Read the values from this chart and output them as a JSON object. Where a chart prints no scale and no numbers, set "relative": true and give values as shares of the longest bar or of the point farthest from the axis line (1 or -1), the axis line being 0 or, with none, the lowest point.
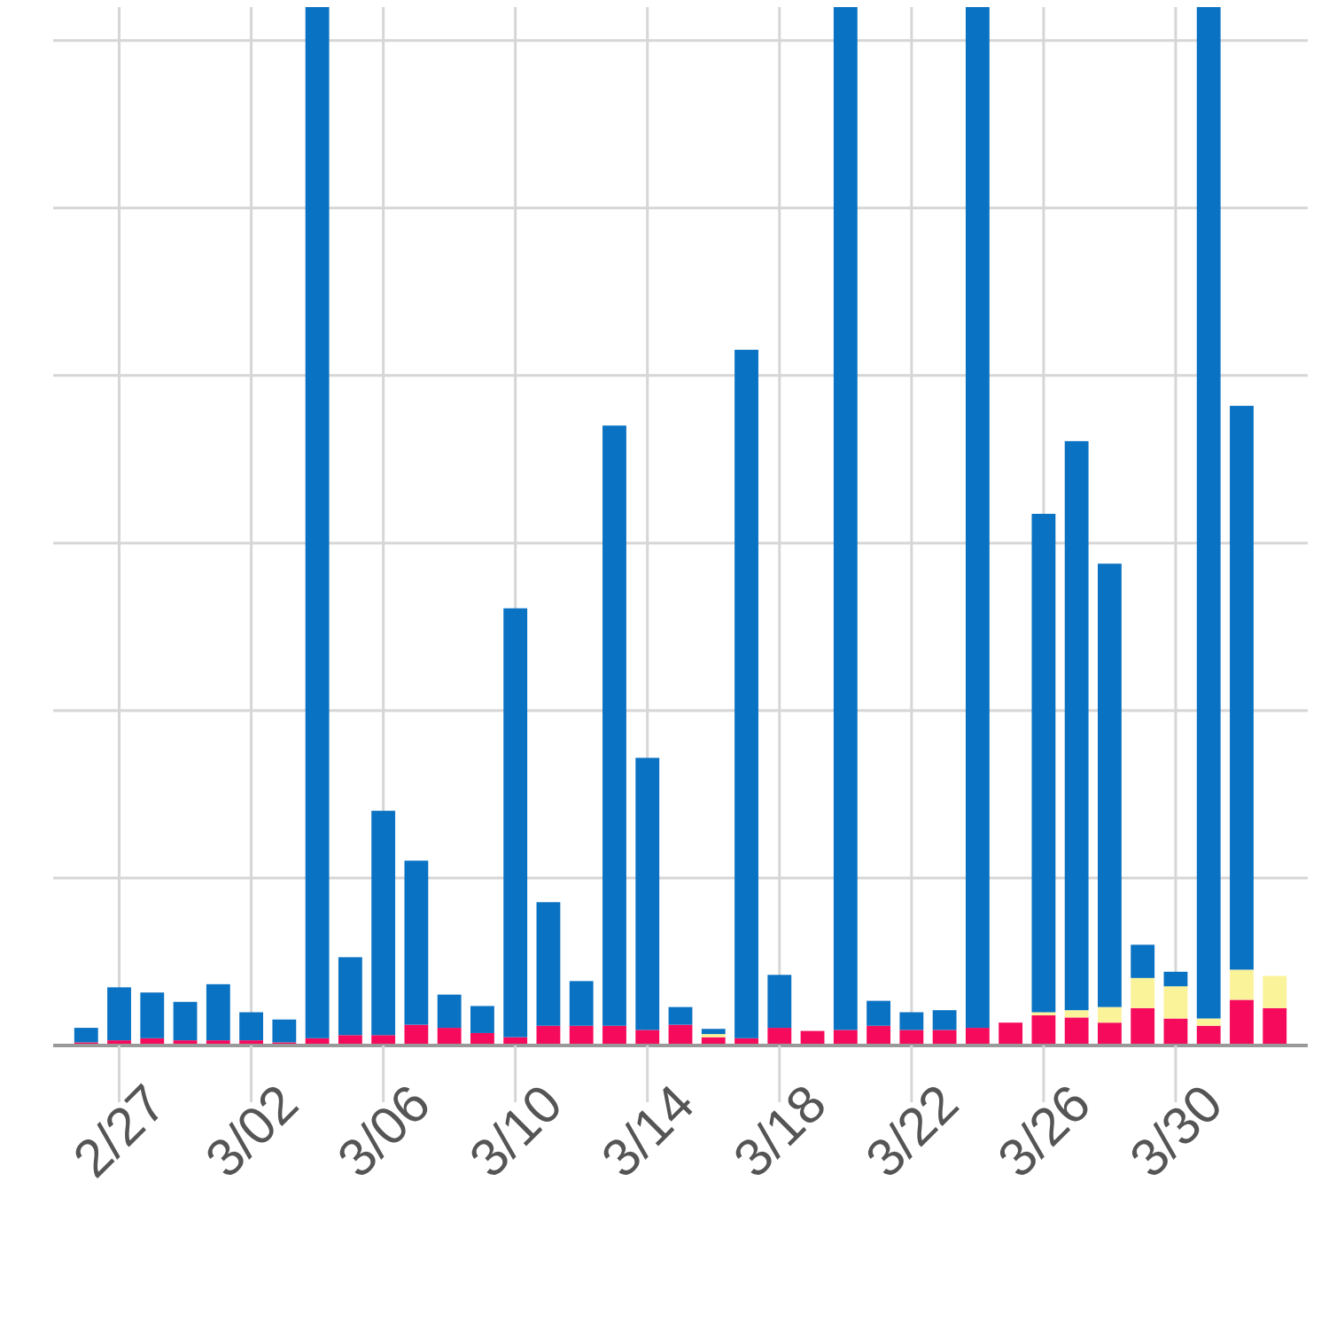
{
  "chart_data": {
    "type": "bar",
    "stacked": true,
    "relative": true,
    "grid": true,
    "x": [
      "--02-26",
      "--02-27",
      "--02-28",
      "--02-29",
      "--03-01",
      "--03-02",
      "--03-03",
      "--03-04",
      "--03-05",
      "--03-06",
      "--03-07",
      "--03-08",
      "--03-09",
      "--03-10",
      "--03-11",
      "--03-12",
      "--03-13",
      "--03-14",
      "--03-15",
      "--03-16",
      "--03-17",
      "--03-18",
      "--03-19",
      "--03-20",
      "--03-21",
      "--03-22",
      "--03-23",
      "--03-24",
      "--03-25",
      "--03-26",
      "--03-27",
      "--03-28",
      "--03-29",
      "--03-30",
      "--03-31",
      "--04-01",
      "--04-02"
    ],
    "xlim": [
      "--02-25",
      "--04-03"
    ],
    "xticks": [
      {
        "value": "--02-27",
        "label": "2/27"
      },
      {
        "value": "--03-02",
        "label": "3/02"
      },
      {
        "value": "--03-06",
        "label": "3/06"
      },
      {
        "value": "--03-10",
        "label": "3/10"
      },
      {
        "value": "--03-14",
        "label": "3/14"
      },
      {
        "value": "--03-18",
        "label": "3/18"
      },
      {
        "value": "--03-22",
        "label": "3/22"
      },
      {
        "value": "--03-26",
        "label": "3/26"
      },
      {
        "value": "--03-30",
        "label": "3/30"
      }
    ],
    "series": [
      {
        "color": "#f50a5c",
        "values": [
          0.003,
          0.005,
          0.007,
          0.005,
          0.005,
          0.005,
          0.003,
          0.007,
          0.01,
          0.01,
          0.02,
          0.017,
          0.012,
          0.008,
          0.019,
          0.019,
          0.019,
          0.015,
          0.02,
          0.008,
          0.007,
          0.017,
          0.014,
          0.015,
          0.019,
          0.015,
          0.015,
          0.017,
          0.022,
          0.029,
          0.027,
          0.022,
          0.036,
          0.026,
          0.019,
          0.044,
          0.036
        ]
      },
      {
        "color": "#fbf39a",
        "values": [
          0,
          0,
          0,
          0,
          0,
          0,
          0,
          0,
          0,
          0,
          0,
          0,
          0,
          0,
          0,
          0,
          0,
          0,
          0,
          0.003,
          0,
          0,
          0,
          0,
          0,
          0,
          0,
          0,
          0,
          0.003,
          0.007,
          0.015,
          0.029,
          0.031,
          0.007,
          0.029,
          0.031
        ]
      },
      {
        "color": "#0a72c2",
        "values": [
          0.014,
          0.051,
          0.044,
          0.037,
          0.054,
          0.027,
          0.022,
          0.993,
          0.075,
          0.216,
          0.158,
          0.032,
          0.026,
          0.413,
          0.119,
          0.043,
          0.578,
          0.262,
          0.017,
          0.005,
          0.663,
          0.051,
          0,
          0.985,
          0.024,
          0.017,
          0.019,
          0.983,
          0,
          0.48,
          0.548,
          0.427,
          0.032,
          0.014,
          0.974,
          0.543,
          0
        ]
      }
    ]
  }
}
